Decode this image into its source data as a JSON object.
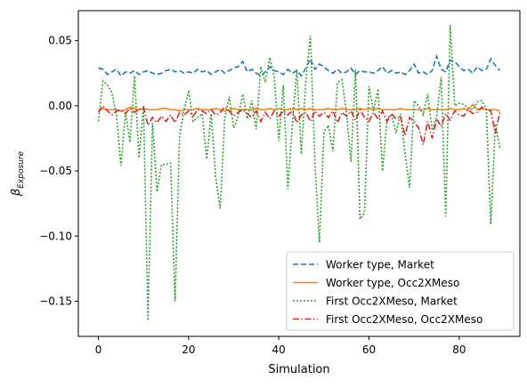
{
  "chart_data": {
    "type": "line",
    "title": "",
    "xlabel": "Simulation",
    "ylabel": "β_Exposure",
    "ylabel_main": "β",
    "ylabel_sub": "Exposure",
    "xlim": [
      -4.45,
      93.45
    ],
    "ylim": [
      -0.177,
      0.073
    ],
    "xticks": [
      0,
      20,
      40,
      60,
      80
    ],
    "yticks": [
      -0.15,
      -0.1,
      -0.05,
      0.0,
      0.05
    ],
    "ytick_labels": [
      "−0.15",
      "−0.10",
      "−0.05",
      "0.00",
      "0.05"
    ],
    "grid": false,
    "legend_position": "lower-right",
    "x": [
      0,
      1,
      2,
      3,
      4,
      5,
      6,
      7,
      8,
      9,
      10,
      11,
      12,
      13,
      14,
      15,
      16,
      17,
      18,
      19,
      20,
      21,
      22,
      23,
      24,
      25,
      26,
      27,
      28,
      29,
      30,
      31,
      32,
      33,
      34,
      35,
      36,
      37,
      38,
      39,
      40,
      41,
      42,
      43,
      44,
      45,
      46,
      47,
      48,
      49,
      50,
      51,
      52,
      53,
      54,
      55,
      56,
      57,
      58,
      59,
      60,
      61,
      62,
      63,
      64,
      65,
      66,
      67,
      68,
      69,
      70,
      71,
      72,
      73,
      74,
      75,
      76,
      77,
      78,
      79,
      80,
      81,
      82,
      83,
      84,
      85,
      86,
      87,
      88,
      89
    ],
    "series": [
      {
        "name": "Worker type, Market",
        "color": "#1f77b4",
        "dash": "dashed",
        "values": [
          0.029,
          0.028,
          0.024,
          0.026,
          0.028,
          0.023,
          0.026,
          0.025,
          0.027,
          0.024,
          0.026,
          0.027,
          0.025,
          0.024,
          0.025,
          0.027,
          0.028,
          0.026,
          0.027,
          0.025,
          0.026,
          0.025,
          0.028,
          0.026,
          0.027,
          0.024,
          0.026,
          0.028,
          0.025,
          0.027,
          0.029,
          0.03,
          0.034,
          0.026,
          0.028,
          0.025,
          0.023,
          0.026,
          0.03,
          0.027,
          0.026,
          0.024,
          0.028,
          0.025,
          0.027,
          0.023,
          0.029,
          0.036,
          0.028,
          0.032,
          0.03,
          0.027,
          0.025,
          0.028,
          0.025,
          0.026,
          0.029,
          0.024,
          0.027,
          0.026,
          0.026,
          0.025,
          0.027,
          0.03,
          0.025,
          0.027,
          0.025,
          0.026,
          0.024,
          0.027,
          0.032,
          0.025,
          0.026,
          0.024,
          0.027,
          0.038,
          0.028,
          0.026,
          0.035,
          0.034,
          0.03,
          0.027,
          0.028,
          0.025,
          0.03,
          0.027,
          0.028,
          0.036,
          0.031,
          0.027
        ]
      },
      {
        "name": "Worker type, Occ2XMeso",
        "color": "#ff7f0e",
        "dash": "solid",
        "values": [
          -0.003,
          -0.002,
          -0.003,
          -0.003,
          -0.003,
          -0.004,
          -0.003,
          -0.001,
          -0.002,
          -0.003,
          -0.002,
          -0.003,
          -0.003,
          -0.003,
          -0.002,
          -0.002,
          -0.003,
          -0.003,
          -0.004,
          -0.003,
          -0.003,
          -0.003,
          -0.002,
          -0.003,
          -0.003,
          -0.003,
          -0.002,
          -0.003,
          -0.004,
          -0.003,
          -0.002,
          -0.003,
          -0.003,
          -0.003,
          -0.003,
          -0.002,
          -0.003,
          -0.003,
          -0.002,
          -0.003,
          -0.002,
          -0.003,
          -0.003,
          -0.002,
          -0.003,
          -0.002,
          -0.003,
          -0.002,
          -0.003,
          -0.003,
          -0.003,
          -0.002,
          -0.003,
          -0.003,
          -0.002,
          -0.003,
          -0.003,
          -0.003,
          -0.002,
          -0.003,
          -0.002,
          -0.003,
          -0.002,
          -0.003,
          -0.003,
          -0.003,
          -0.003,
          -0.002,
          -0.003,
          -0.003,
          -0.003,
          -0.003,
          -0.003,
          -0.002,
          -0.003,
          -0.003,
          -0.003,
          -0.003,
          -0.002,
          -0.003,
          -0.003,
          -0.002,
          -0.003,
          0.001,
          -0.003,
          -0.002,
          -0.003,
          -0.003,
          -0.003,
          -0.004
        ]
      },
      {
        "name": "First Occ2XMeso, Market",
        "color": "#2ca02c",
        "dash": "dotted",
        "values": [
          -0.012,
          0.019,
          0.016,
          0.01,
          -0.007,
          -0.046,
          -0.005,
          -0.028,
          0.023,
          -0.04,
          0.0,
          -0.165,
          -0.013,
          -0.066,
          -0.045,
          -0.045,
          -0.044,
          -0.15,
          -0.023,
          -0.003,
          0.012,
          -0.012,
          -0.009,
          -0.006,
          -0.041,
          -0.006,
          -0.055,
          -0.079,
          -0.01,
          0.007,
          -0.017,
          -0.008,
          0.009,
          -0.01,
          0.004,
          -0.018,
          0.03,
          0.018,
          0.037,
          0.022,
          -0.027,
          0.016,
          -0.064,
          -0.014,
          0.028,
          -0.037,
          0.02,
          0.054,
          -0.043,
          -0.105,
          -0.02,
          -0.015,
          -0.035,
          0.018,
          0.02,
          -0.005,
          -0.043,
          0.028,
          -0.087,
          -0.082,
          0.015,
          -0.004,
          0.013,
          -0.05,
          -0.01,
          -0.007,
          -0.021,
          -0.006,
          -0.037,
          -0.063,
          0.004,
          0.0,
          -0.007,
          0.009,
          -0.019,
          -0.008,
          0.022,
          -0.085,
          0.062,
          0.0,
          0.002,
          0.001,
          -0.002,
          -0.003,
          0.003,
          0.004,
          -0.002,
          -0.091,
          -0.014,
          -0.032
        ]
      },
      {
        "name": "First Occ2XMeso, Occ2XMeso",
        "color": "#d62728",
        "dash": "dashdot",
        "values": [
          -0.005,
          0.0,
          -0.004,
          -0.007,
          -0.004,
          -0.003,
          -0.006,
          -0.002,
          -0.005,
          -0.003,
          -0.001,
          -0.015,
          -0.009,
          -0.013,
          -0.008,
          -0.012,
          -0.007,
          -0.013,
          -0.005,
          -0.007,
          -0.004,
          -0.008,
          -0.003,
          -0.004,
          -0.006,
          -0.003,
          -0.007,
          -0.005,
          -0.001,
          -0.004,
          -0.008,
          -0.005,
          -0.003,
          -0.006,
          -0.009,
          -0.004,
          -0.012,
          -0.005,
          -0.01,
          -0.004,
          -0.008,
          -0.004,
          -0.007,
          -0.004,
          -0.013,
          -0.007,
          -0.005,
          -0.012,
          -0.004,
          -0.008,
          -0.005,
          -0.009,
          -0.004,
          -0.013,
          -0.005,
          -0.008,
          -0.004,
          -0.011,
          -0.003,
          -0.009,
          -0.012,
          -0.005,
          -0.01,
          -0.004,
          -0.012,
          -0.006,
          -0.01,
          -0.008,
          -0.023,
          -0.009,
          -0.012,
          -0.017,
          -0.03,
          -0.012,
          -0.025,
          -0.01,
          -0.016,
          -0.006,
          -0.011,
          -0.004,
          -0.007,
          -0.008,
          -0.003,
          -0.006,
          -0.005,
          -0.001,
          -0.003,
          -0.004,
          -0.021,
          -0.005
        ]
      }
    ]
  }
}
